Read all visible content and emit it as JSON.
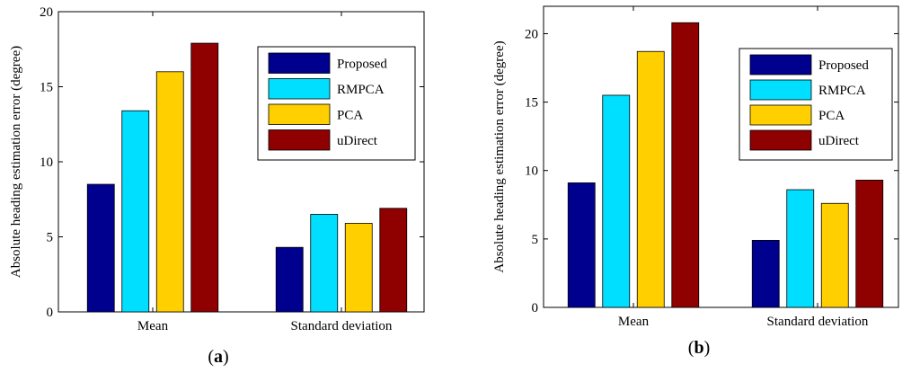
{
  "chart_data": [
    {
      "type": "bar",
      "panel_label": "a",
      "categories": [
        "Mean",
        "Standard deviation"
      ],
      "series": [
        {
          "name": "Proposed",
          "values": [
            8.5,
            4.3
          ]
        },
        {
          "name": "RMPCA",
          "values": [
            13.4,
            6.5
          ]
        },
        {
          "name": "PCA",
          "values": [
            16.0,
            5.9
          ]
        },
        {
          "name": "uDirect",
          "values": [
            17.9,
            6.9
          ]
        }
      ],
      "ylabel": "Absolute heading estimation error (degree)",
      "xlabel": "",
      "ylim": [
        0,
        20
      ],
      "yticks": [
        0,
        5,
        10,
        15,
        20
      ],
      "legend": "top-right"
    },
    {
      "type": "bar",
      "panel_label": "b",
      "categories": [
        "Mean",
        "Standard deviation"
      ],
      "series": [
        {
          "name": "Proposed",
          "values": [
            9.1,
            4.9
          ]
        },
        {
          "name": "RMPCA",
          "values": [
            15.5,
            8.6
          ]
        },
        {
          "name": "PCA",
          "values": [
            18.7,
            7.6
          ]
        },
        {
          "name": "uDirect",
          "values": [
            20.8,
            9.3
          ]
        }
      ],
      "ylabel": "Absolute heading estimation error (degree)",
      "xlabel": "",
      "ylim": [
        0,
        22
      ],
      "yticks": [
        0,
        5,
        10,
        15,
        20
      ],
      "legend": "top-right"
    }
  ],
  "colors": {
    "Proposed": "#00008f",
    "RMPCA": "#00dfff",
    "PCA": "#ffcf00",
    "uDirect": "#8f0000"
  }
}
